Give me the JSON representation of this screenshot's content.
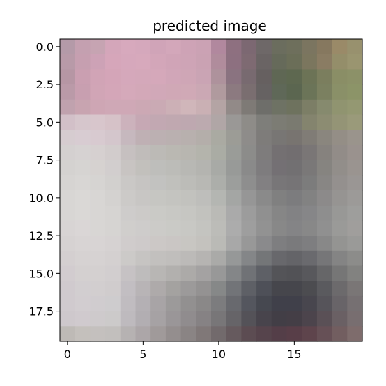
{
  "chart_data": {
    "type": "heatmap",
    "title": "predicted image",
    "xlabel": "",
    "ylabel": "",
    "grid": false,
    "legend": "none",
    "shape": [
      20,
      20
    ],
    "xlim": [
      -0.5,
      19.5
    ],
    "ylim": [
      19.5,
      -0.5
    ],
    "x_ticks": [
      0,
      5,
      10,
      15
    ],
    "x_tick_labels": [
      "0",
      "5",
      "10",
      "15"
    ],
    "y_ticks": [
      0.0,
      2.5,
      5.0,
      7.5,
      10.0,
      12.5,
      15.0,
      17.5
    ],
    "y_tick_labels": [
      "0.0",
      "2.5",
      "5.0",
      "7.5",
      "10.0",
      "12.5",
      "15.0",
      "17.5"
    ],
    "colormap": "rgb",
    "pixels": [
      [
        "#b49aa8",
        "#c4a0b0",
        "#c6a4b2",
        "#d4a6ba",
        "#d7a9bd",
        "#d5a8bc",
        "#d0a4b8",
        "#d3a7ba",
        "#cea3b6",
        "#cba2b4",
        "#b1889e",
        "#8e7080",
        "#7c6872",
        "#6e6868",
        "#6b6d5e",
        "#6e6f5c",
        "#7b7560",
        "#86785f",
        "#9a8a68",
        "#98916e"
      ],
      [
        "#b89aa8",
        "#c69fb0",
        "#cda2b6",
        "#d6a6ba",
        "#d6a8bc",
        "#d7a9bc",
        "#d3a6b9",
        "#d0a4b7",
        "#cea4b6",
        "#caa2b3",
        "#b08c9c",
        "#8d7080",
        "#7e6a72",
        "#6a6464",
        "#666a5a",
        "#6b6e58",
        "#7b765e",
        "#8a7c63",
        "#948e6a",
        "#9a9570"
      ],
      [
        "#b696a4",
        "#ca9fb1",
        "#d1a4b6",
        "#d4a5b8",
        "#d5a8bb",
        "#d4a8ba",
        "#d5a8ba",
        "#d1a6b8",
        "#cfa6b6",
        "#caa4b4",
        "#ae929c",
        "#8a7380",
        "#786a70",
        "#666060",
        "#5f6754",
        "#5e6850",
        "#6c7356",
        "#7b7e5e",
        "#8a8e66",
        "#8c9168"
      ],
      [
        "#ba9aa8",
        "#c89fb0",
        "#d1a5b6",
        "#d4a6b8",
        "#d5a9ba",
        "#d3a8b8",
        "#d1a8b8",
        "#d0a8b6",
        "#d0a9b6",
        "#cba8b4",
        "#b09a9e",
        "#8c7a80",
        "#7a6e70",
        "#666262",
        "#5f6858",
        "#5b6650",
        "#6b7458",
        "#7b8060",
        "#8a9068",
        "#8c9468"
      ],
      [
        "#c0a2ae",
        "#c8a4b0",
        "#cea6b4",
        "#cfa8b6",
        "#cfa8b6",
        "#cca8b4",
        "#caaab4",
        "#ccb0b6",
        "#d0b6ba",
        "#cab0b4",
        "#b4a4a4",
        "#928a88",
        "#7e7a76",
        "#6e6e6a",
        "#6e7264",
        "#6e725e",
        "#7c7e66",
        "#868a6e",
        "#909470",
        "#949872"
      ],
      [
        "#d2c0c8",
        "#d6c6cc",
        "#d8c6cc",
        "#d6c2c8",
        "#ccb2bc",
        "#c6a8b4",
        "#c2a8b2",
        "#c0a8b0",
        "#bea8b0",
        "#bcaaaf",
        "#b0a6a6",
        "#9a9896",
        "#8e8c88",
        "#7e7e7a",
        "#7c7c74",
        "#7a7a70",
        "#84846e",
        "#8c8c72",
        "#949476",
        "#9a9a7a"
      ],
      [
        "#d6ccd0",
        "#d8ccd2",
        "#d8cad0",
        "#d4c6cc",
        "#c6b8be",
        "#bfb0b4",
        "#bcb0b2",
        "#bab0b0",
        "#b8b0ae",
        "#b4aeaa",
        "#aaaaa2",
        "#9c9c96",
        "#8e8c8a",
        "#7e7c7a",
        "#787674",
        "#787470",
        "#807c76",
        "#8a867e",
        "#948e86",
        "#9a948c"
      ],
      [
        "#d4d0d0",
        "#d6d2d2",
        "#d6d0d0",
        "#d2cccc",
        "#c6c0c0",
        "#c0bcba",
        "#bcbab6",
        "#bab8b2",
        "#b8b6b0",
        "#b4b4ac",
        "#aaaca4",
        "#9a9c98",
        "#8c8c8a",
        "#7e7c7c",
        "#747072",
        "#726e70",
        "#7a7676",
        "#86827e",
        "#928c88",
        "#9a928e"
      ],
      [
        "#d4d2d0",
        "#d6d4d2",
        "#d6d2d0",
        "#d2cece",
        "#c8c4c2",
        "#c2c0bc",
        "#bebebb",
        "#bcbcb8",
        "#b8b8b4",
        "#b4b4b0",
        "#a8aaa6",
        "#989a98",
        "#8a8a8a",
        "#7e7c7e",
        "#747074",
        "#727072",
        "#7a7878",
        "#868480",
        "#928e8a",
        "#9a9490"
      ],
      [
        "#d6d4d2",
        "#d8d6d4",
        "#d6d4d2",
        "#d2d0ce",
        "#cac8c6",
        "#c6c4c2",
        "#c2c2c0",
        "#c0c0bc",
        "#bcbcb8",
        "#b8b8b4",
        "#acaeaa",
        "#9c9e9c",
        "#8e8e8e",
        "#828082",
        "#787678",
        "#767476",
        "#7c7c7c",
        "#888684",
        "#94908e",
        "#9a9694"
      ],
      [
        "#d8d6d4",
        "#dad8d6",
        "#d8d6d4",
        "#d4d2d0",
        "#cccac8",
        "#c8c6c4",
        "#c6c6c2",
        "#c4c4c0",
        "#c2c2be",
        "#bebebb",
        "#b4b6b2",
        "#a4a6a4",
        "#969696",
        "#8a8a8a",
        "#808080",
        "#7c7c7e",
        "#828282",
        "#8c8a8a",
        "#969492",
        "#9c9a98"
      ],
      [
        "#d8d6d4",
        "#dad8d6",
        "#d8d6d4",
        "#d6d4d2",
        "#cecccb",
        "#cccac8",
        "#cacac6",
        "#c8c8c4",
        "#c6c6c2",
        "#c2c2be",
        "#babab6",
        "#aaaaaa",
        "#9c9c9c",
        "#909090",
        "#868686",
        "#828284",
        "#868688",
        "#8e8e8e",
        "#989896",
        "#9e9e9c"
      ],
      [
        "#d8d4d4",
        "#dad6d6",
        "#d8d6d4",
        "#d6d4d2",
        "#d0cecc",
        "#cecccb",
        "#cccbc8",
        "#cacac6",
        "#c8c8c4",
        "#c4c4c0",
        "#bcbcb8",
        "#acacac",
        "#9e9e9e",
        "#929292",
        "#888888",
        "#848486",
        "#888888",
        "#909090",
        "#9a9a98",
        "#a09e9c"
      ],
      [
        "#d6d2d2",
        "#d8d4d4",
        "#d8d4d4",
        "#d6d2d2",
        "#d0cccc",
        "#cecaca",
        "#ccc8c6",
        "#cac6c4",
        "#c8c6c2",
        "#c4c2be",
        "#babab6",
        "#a8a8a8",
        "#989898",
        "#8a8a8c",
        "#7e7e80",
        "#7a7a7c",
        "#7e7e80",
        "#888888",
        "#949492",
        "#9a9a98"
      ],
      [
        "#d4cfd0",
        "#d6d2d2",
        "#d6d2d2",
        "#d4d0d0",
        "#cccac8",
        "#c6c4c2",
        "#c2c0be",
        "#c0bebc",
        "#bcbab8",
        "#b6b4b2",
        "#aaaaa8",
        "#969898",
        "#848688",
        "#747678",
        "#68686c",
        "#646468",
        "#6a6a6e",
        "#767678",
        "#848484",
        "#8c8c8a"
      ],
      [
        "#d2cccf",
        "#d4d0d0",
        "#d4d0d0",
        "#d2cecf",
        "#c6c2c4",
        "#bebcbc",
        "#b8b6b4",
        "#b2b0ae",
        "#acaaa8",
        "#a4a2a2",
        "#989898",
        "#848688",
        "#707276",
        "#5e6066",
        "#545458",
        "#525256",
        "#58585c",
        "#666668",
        "#767676",
        "#828280"
      ],
      [
        "#d0cace",
        "#d2ced0",
        "#d2cecf",
        "#d0cccd",
        "#c2bec2",
        "#b8b4b6",
        "#aeaaaa",
        "#a4a2a0",
        "#9c9a9a",
        "#949292",
        "#868888",
        "#727478",
        "#5e6066",
        "#4e5058",
        "#46464c",
        "#46464c",
        "#4c4c50",
        "#5a5a5e",
        "#6c6a6c",
        "#7a7676"
      ],
      [
        "#d0cace",
        "#d2cdd0",
        "#d0cccf",
        "#ceccce",
        "#c0bcc0",
        "#b4b0b4",
        "#a8a4a6",
        "#9c9a9a",
        "#929090",
        "#8a8888",
        "#7c7c7e",
        "#68696e",
        "#54565e",
        "#464850",
        "#40404a",
        "#40404a",
        "#48464e",
        "#56545a",
        "#686468",
        "#767072"
      ],
      [
        "#cec8cc",
        "#d0cace",
        "#cecacc",
        "#cccaca",
        "#bebabe",
        "#b2aeb2",
        "#a6a2a4",
        "#9a9698",
        "#908c8e",
        "#868284",
        "#787678",
        "#666468",
        "#545258",
        "#48444c",
        "#423e46",
        "#443e46",
        "#4c444c",
        "#5a5056",
        "#6a6064",
        "#786e70"
      ],
      [
        "#bebab6",
        "#c4c0bc",
        "#c4c0be",
        "#c2bfbd",
        "#b6b2b2",
        "#aca6a8",
        "#a09a9a",
        "#948e8e",
        "#8a8484",
        "#807878",
        "#726a6c",
        "#665a5e",
        "#5c4c52",
        "#56444c",
        "#543e48",
        "#583e48",
        "#5e444c",
        "#665056",
        "#725e60",
        "#7e6c6c"
      ]
    ]
  }
}
